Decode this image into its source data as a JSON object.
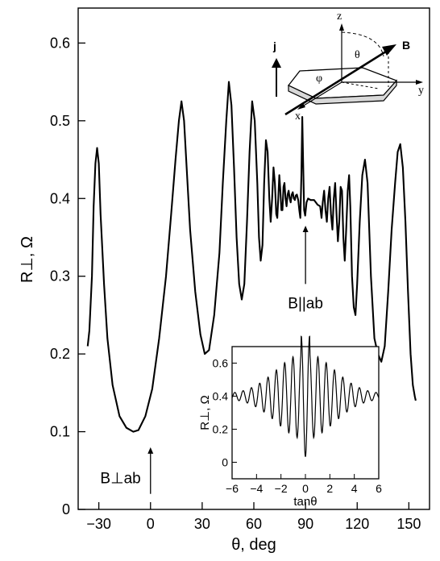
{
  "chart_data": [
    {
      "type": "line",
      "xlabel": "θ, deg",
      "ylabel": "R⊥, Ω",
      "xlim": [
        -42,
        162
      ],
      "ylim": [
        0,
        0.645
      ],
      "xticks": [
        -30,
        0,
        30,
        60,
        90,
        120,
        150
      ],
      "yticks": [
        0,
        0.1,
        0.2,
        0.3,
        0.4,
        0.5,
        0.6
      ],
      "xtick_labels": [
        "−30",
        "0",
        "30",
        "60",
        "90",
        "120",
        "150"
      ],
      "ytick_labels": [
        "0",
        "0.1",
        "0.2",
        "0.3",
        "0.4",
        "0.5",
        "0.6"
      ],
      "grid": false,
      "series": [
        {
          "points": [
            [
              -36.5,
              0.21
            ],
            [
              -35.5,
              0.23
            ],
            [
              -34,
              0.3
            ],
            [
              -33,
              0.39
            ],
            [
              -32,
              0.445
            ],
            [
              -31,
              0.465
            ],
            [
              -30,
              0.445
            ],
            [
              -29,
              0.38
            ],
            [
              -27,
              0.29
            ],
            [
              -25,
              0.22
            ],
            [
              -22,
              0.16
            ],
            [
              -18,
              0.12
            ],
            [
              -14,
              0.105
            ],
            [
              -10,
              0.1
            ],
            [
              -7,
              0.102
            ],
            [
              -3,
              0.12
            ],
            [
              1,
              0.155
            ],
            [
              5,
              0.22
            ],
            [
              9,
              0.3
            ],
            [
              12,
              0.38
            ],
            [
              14.5,
              0.45
            ],
            [
              16.5,
              0.5
            ],
            [
              18,
              0.525
            ],
            [
              19.5,
              0.5
            ],
            [
              21,
              0.44
            ],
            [
              23,
              0.36
            ],
            [
              26,
              0.28
            ],
            [
              29,
              0.225
            ],
            [
              31.5,
              0.2
            ],
            [
              34,
              0.205
            ],
            [
              37,
              0.25
            ],
            [
              40,
              0.33
            ],
            [
              42,
              0.42
            ],
            [
              44,
              0.5
            ],
            [
              45.5,
              0.55
            ],
            [
              47,
              0.52
            ],
            [
              48.5,
              0.44
            ],
            [
              50,
              0.35
            ],
            [
              51.5,
              0.29
            ],
            [
              53,
              0.27
            ],
            [
              54.5,
              0.29
            ],
            [
              56,
              0.37
            ],
            [
              57.5,
              0.46
            ],
            [
              59,
              0.525
            ],
            [
              60.5,
              0.5
            ],
            [
              62,
              0.42
            ],
            [
              63,
              0.35
            ],
            [
              64,
              0.32
            ],
            [
              65,
              0.34
            ],
            [
              66,
              0.42
            ],
            [
              67,
              0.475
            ],
            [
              68,
              0.46
            ],
            [
              69,
              0.4
            ],
            [
              69.8,
              0.37
            ],
            [
              70.6,
              0.4
            ],
            [
              71.4,
              0.44
            ],
            [
              72.2,
              0.42
            ],
            [
              73,
              0.38
            ],
            [
              73.6,
              0.375
            ],
            [
              74.2,
              0.4
            ],
            [
              74.8,
              0.43
            ],
            [
              75.4,
              0.41
            ],
            [
              76,
              0.385
            ],
            [
              76.6,
              0.385
            ],
            [
              77.2,
              0.415
            ],
            [
              77.8,
              0.42
            ],
            [
              78.4,
              0.4
            ],
            [
              79,
              0.39
            ],
            [
              79.6,
              0.405
            ],
            [
              80.2,
              0.41
            ],
            [
              80.8,
              0.4
            ],
            [
              81.4,
              0.395
            ],
            [
              82,
              0.405
            ],
            [
              82.6,
              0.408
            ],
            [
              83.2,
              0.4
            ],
            [
              83.8,
              0.398
            ],
            [
              84.4,
              0.404
            ],
            [
              85,
              0.405
            ],
            [
              85.8,
              0.398
            ],
            [
              86.4,
              0.385
            ],
            [
              87,
              0.375
            ],
            [
              87.6,
              0.43
            ],
            [
              88.1,
              0.505
            ],
            [
              88.6,
              0.45
            ],
            [
              89.2,
              0.385
            ],
            [
              89.8,
              0.378
            ],
            [
              90.6,
              0.395
            ],
            [
              91.5,
              0.4
            ],
            [
              93,
              0.398
            ],
            [
              95,
              0.398
            ],
            [
              97,
              0.392
            ],
            [
              98.5,
              0.39
            ],
            [
              99.3,
              0.375
            ],
            [
              100,
              0.395
            ],
            [
              100.8,
              0.41
            ],
            [
              101.6,
              0.385
            ],
            [
              102.4,
              0.37
            ],
            [
              103.2,
              0.4
            ],
            [
              104,
              0.415
            ],
            [
              104.8,
              0.38
            ],
            [
              105.6,
              0.36
            ],
            [
              106.4,
              0.4
            ],
            [
              107.2,
              0.42
            ],
            [
              108,
              0.38
            ],
            [
              108.8,
              0.345
            ],
            [
              109.6,
              0.37
            ],
            [
              110.4,
              0.415
            ],
            [
              111.2,
              0.41
            ],
            [
              112,
              0.35
            ],
            [
              112.8,
              0.32
            ],
            [
              113.6,
              0.36
            ],
            [
              114.5,
              0.41
            ],
            [
              115.3,
              0.43
            ],
            [
              116,
              0.39
            ],
            [
              117,
              0.3
            ],
            [
              118,
              0.26
            ],
            [
              119,
              0.25
            ],
            [
              120,
              0.29
            ],
            [
              121.5,
              0.37
            ],
            [
              123,
              0.43
            ],
            [
              124.5,
              0.45
            ],
            [
              126,
              0.42
            ],
            [
              128,
              0.3
            ],
            [
              130,
              0.22
            ],
            [
              132,
              0.2
            ],
            [
              134,
              0.19
            ],
            [
              136,
              0.21
            ],
            [
              138,
              0.28
            ],
            [
              140,
              0.36
            ],
            [
              142,
              0.42
            ],
            [
              143.5,
              0.46
            ],
            [
              145,
              0.47
            ],
            [
              146.5,
              0.44
            ],
            [
              148,
              0.37
            ],
            [
              149.5,
              0.28
            ],
            [
              151,
              0.2
            ],
            [
              152.3,
              0.16
            ],
            [
              153.5,
              0.145
            ],
            [
              154,
              0.14
            ]
          ]
        }
      ],
      "annotations": [
        {
          "text": "B||ab",
          "x": 90,
          "y": 0.265,
          "arrow_from_y": 0.29,
          "arrow_to_y": 0.365
        },
        {
          "text": "B⊥ab",
          "x": 0,
          "y": 0.04,
          "arrow_from_y": 0.02,
          "arrow_to_y": 0.08
        }
      ]
    },
    {
      "type": "line",
      "xlabel": "tanθ",
      "ylabel": "R⊥, Ω",
      "xlim": [
        -6,
        6
      ],
      "ylim": [
        -0.1,
        0.7
      ],
      "xticks": [
        -6,
        -4,
        -2,
        0,
        2,
        4,
        6
      ],
      "yticks": [
        0,
        0.2,
        0.4,
        0.6
      ],
      "xtick_labels": [
        "−6",
        "−4",
        "−2",
        "0",
        "2",
        "4",
        "6"
      ],
      "ytick_labels": [
        "0",
        "0.2",
        "0.4",
        "0.6"
      ],
      "grid": false,
      "envelope": {
        "baseline": 0.4,
        "period": 0.68,
        "phase": 0.0,
        "amplitude_max": 0.25,
        "decay_width": 2.3
      }
    }
  ],
  "schematic": {
    "labels": {
      "j": "j",
      "B": "B",
      "z": "z",
      "x": "x",
      "y": "y",
      "theta": "θ",
      "phi": "φ"
    }
  }
}
